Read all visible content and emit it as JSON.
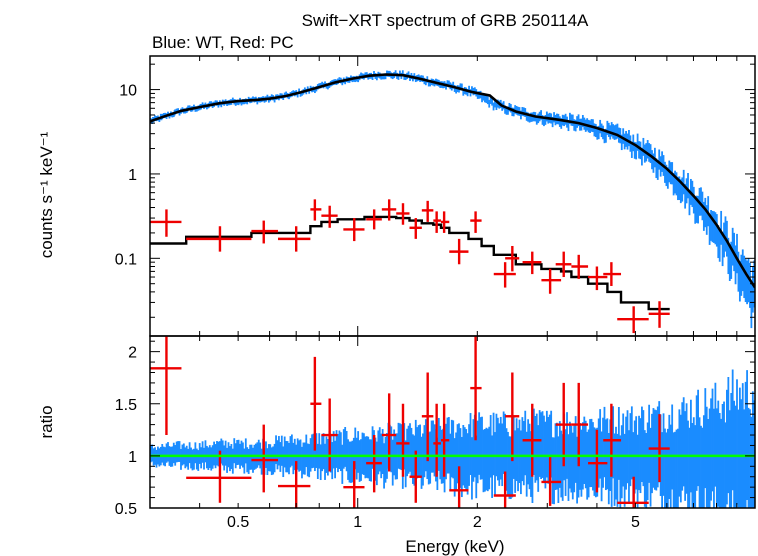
{
  "chart_data": {
    "type": "scatter",
    "title": "Swift−XRT spectrum of GRB 250114A",
    "subtitle": "Blue: WT, Red: PC",
    "xlabel": "Energy (keV)",
    "x_scale": "log",
    "xlim": [
      0.3,
      10
    ],
    "x_ticks": [
      0.5,
      1,
      2,
      5
    ],
    "x_tick_labels": [
      "0.5",
      "1",
      "2",
      "5"
    ],
    "colors": {
      "wt": "#1a8cff",
      "pc": "#ee0000",
      "model": "#000000",
      "unity": "#00ff00"
    },
    "panels": [
      {
        "name": "spectrum",
        "ylabel": "counts s⁻¹ keV⁻¹",
        "y_scale": "log",
        "ylim": [
          0.012,
          25
        ],
        "y_ticks": [
          0.1,
          1,
          10
        ],
        "y_tick_labels": [
          "0.1",
          "1",
          "10"
        ],
        "series": [
          {
            "name": "WT data",
            "kind": "dense_errorbars",
            "color": "#1a8cff",
            "x": [
              0.3,
              0.33,
              0.36,
              0.4,
              0.45,
              0.5,
              0.55,
              0.6,
              0.66,
              0.72,
              0.8,
              0.88,
              0.97,
              1.07,
              1.18,
              1.3,
              1.43,
              1.58,
              1.75,
              1.95,
              2.2,
              2.5,
              2.8,
              3.2,
              3.6,
              4.0,
              4.5,
              5.0,
              5.5,
              6.0,
              6.5,
              7.0,
              7.5,
              8.0,
              8.5,
              9.0,
              9.5,
              10.0
            ],
            "y": [
              4.2,
              4.9,
              5.6,
              6.2,
              6.9,
              7.3,
              7.5,
              7.8,
              8.4,
              9.3,
              10.7,
              12.2,
              13.5,
              14.6,
              15.1,
              14.8,
              13.5,
              12.0,
              10.7,
              9.3,
              6.8,
              5.5,
              4.8,
              4.4,
              4.0,
              3.5,
              2.9,
              2.2,
              1.6,
              1.15,
              0.8,
              0.55,
              0.38,
              0.25,
              0.16,
              0.1,
              0.065,
              0.045
            ]
          },
          {
            "name": "WT model",
            "kind": "line",
            "color": "#000000",
            "x": [
              0.3,
              0.33,
              0.36,
              0.4,
              0.45,
              0.5,
              0.55,
              0.6,
              0.66,
              0.72,
              0.8,
              0.88,
              0.97,
              1.07,
              1.18,
              1.3,
              1.43,
              1.58,
              1.75,
              1.95,
              2.15,
              2.3,
              2.5,
              2.8,
              3.2,
              3.6,
              4.0,
              4.5,
              5.0,
              5.5,
              6.0,
              6.5,
              7.0,
              7.5,
              8.0,
              8.5,
              9.0,
              9.5,
              10.0
            ],
            "y": [
              4.2,
              4.9,
              5.6,
              6.2,
              6.9,
              7.3,
              7.5,
              7.8,
              8.4,
              9.3,
              10.7,
              12.2,
              13.5,
              14.6,
              15.1,
              14.8,
              13.5,
              12.0,
              10.7,
              9.3,
              8.5,
              6.5,
              5.5,
              4.8,
              4.4,
              4.0,
              3.5,
              2.9,
              2.2,
              1.6,
              1.15,
              0.8,
              0.55,
              0.38,
              0.25,
              0.16,
              0.1,
              0.065,
              0.045
            ]
          },
          {
            "name": "PC data",
            "kind": "errorbars",
            "color": "#ee0000",
            "points": [
              {
                "x": 0.33,
                "xlo": 0.3,
                "xhi": 0.36,
                "y": 0.27,
                "ylo": 0.18,
                "yhi": 0.38
              },
              {
                "x": 0.45,
                "xlo": 0.37,
                "xhi": 0.54,
                "y": 0.17,
                "ylo": 0.12,
                "yhi": 0.24
              },
              {
                "x": 0.58,
                "xlo": 0.54,
                "xhi": 0.63,
                "y": 0.21,
                "ylo": 0.15,
                "yhi": 0.28
              },
              {
                "x": 0.7,
                "xlo": 0.63,
                "xhi": 0.76,
                "y": 0.17,
                "ylo": 0.12,
                "yhi": 0.24
              },
              {
                "x": 0.78,
                "xlo": 0.76,
                "xhi": 0.81,
                "y": 0.38,
                "ylo": 0.28,
                "yhi": 0.5
              },
              {
                "x": 0.85,
                "xlo": 0.81,
                "xhi": 0.89,
                "y": 0.32,
                "ylo": 0.23,
                "yhi": 0.42
              },
              {
                "x": 0.98,
                "xlo": 0.92,
                "xhi": 1.04,
                "y": 0.22,
                "ylo": 0.16,
                "yhi": 0.3
              },
              {
                "x": 1.1,
                "xlo": 1.05,
                "xhi": 1.15,
                "y": 0.29,
                "ylo": 0.22,
                "yhi": 0.38
              },
              {
                "x": 1.2,
                "xlo": 1.15,
                "xhi": 1.25,
                "y": 0.38,
                "ylo": 0.28,
                "yhi": 0.5
              },
              {
                "x": 1.3,
                "xlo": 1.25,
                "xhi": 1.35,
                "y": 0.34,
                "ylo": 0.25,
                "yhi": 0.45
              },
              {
                "x": 1.4,
                "xlo": 1.35,
                "xhi": 1.45,
                "y": 0.23,
                "ylo": 0.17,
                "yhi": 0.3
              },
              {
                "x": 1.5,
                "xlo": 1.45,
                "xhi": 1.55,
                "y": 0.37,
                "ylo": 0.27,
                "yhi": 0.48
              },
              {
                "x": 1.58,
                "xlo": 1.55,
                "xhi": 1.62,
                "y": 0.28,
                "ylo": 0.2,
                "yhi": 0.36
              },
              {
                "x": 1.65,
                "xlo": 1.62,
                "xhi": 1.7,
                "y": 0.27,
                "ylo": 0.2,
                "yhi": 0.36
              },
              {
                "x": 1.8,
                "xlo": 1.7,
                "xhi": 1.9,
                "y": 0.12,
                "ylo": 0.085,
                "yhi": 0.17
              },
              {
                "x": 1.98,
                "xlo": 1.92,
                "xhi": 2.05,
                "y": 0.28,
                "ylo": 0.2,
                "yhi": 0.36
              },
              {
                "x": 2.35,
                "xlo": 2.2,
                "xhi": 2.5,
                "y": 0.065,
                "ylo": 0.045,
                "yhi": 0.09
              },
              {
                "x": 2.45,
                "xlo": 2.35,
                "xhi": 2.55,
                "y": 0.1,
                "ylo": 0.07,
                "yhi": 0.14
              },
              {
                "x": 2.75,
                "xlo": 2.6,
                "xhi": 2.9,
                "y": 0.09,
                "ylo": 0.065,
                "yhi": 0.12
              },
              {
                "x": 3.05,
                "xlo": 2.9,
                "xhi": 3.25,
                "y": 0.055,
                "ylo": 0.038,
                "yhi": 0.075
              },
              {
                "x": 3.3,
                "xlo": 3.15,
                "xhi": 3.45,
                "y": 0.085,
                "ylo": 0.06,
                "yhi": 0.12
              },
              {
                "x": 3.6,
                "xlo": 3.45,
                "xhi": 3.8,
                "y": 0.08,
                "ylo": 0.057,
                "yhi": 0.11
              },
              {
                "x": 4.0,
                "xlo": 3.8,
                "xhi": 4.25,
                "y": 0.06,
                "ylo": 0.042,
                "yhi": 0.08
              },
              {
                "x": 4.35,
                "xlo": 4.15,
                "xhi": 4.6,
                "y": 0.065,
                "ylo": 0.047,
                "yhi": 0.09
              },
              {
                "x": 4.95,
                "xlo": 4.5,
                "xhi": 5.4,
                "y": 0.019,
                "ylo": 0.013,
                "yhi": 0.027
              },
              {
                "x": 5.75,
                "xlo": 5.4,
                "xhi": 6.1,
                "y": 0.022,
                "ylo": 0.015,
                "yhi": 0.031
              }
            ]
          },
          {
            "name": "PC model",
            "kind": "step",
            "color": "#000000",
            "edges": [
              0.3,
              0.37,
              0.54,
              0.63,
              0.76,
              0.81,
              0.89,
              1.04,
              1.15,
              1.25,
              1.35,
              1.45,
              1.55,
              1.62,
              1.7,
              1.9,
              2.05,
              2.2,
              2.5,
              2.9,
              3.25,
              3.45,
              3.8,
              4.25,
              4.6,
              5.4,
              6.1
            ],
            "y": [
              0.15,
              0.18,
              0.2,
              0.2,
              0.24,
              0.27,
              0.29,
              0.31,
              0.31,
              0.3,
              0.28,
              0.26,
              0.25,
              0.23,
              0.2,
              0.17,
              0.14,
              0.11,
              0.085,
              0.075,
              0.07,
              0.06,
              0.05,
              0.04,
              0.03,
              0.025
            ]
          }
        ]
      },
      {
        "name": "ratio",
        "ylabel": "ratio",
        "y_scale": "linear",
        "ylim": [
          0.5,
          2.15
        ],
        "y_ticks": [
          0.5,
          1,
          1.5,
          2
        ],
        "y_tick_labels": [
          "0.5",
          "1",
          "1.5",
          "2"
        ],
        "unity_line": 1,
        "series": [
          {
            "name": "WT ratio",
            "kind": "dense_errorbars",
            "color": "#1a8cff",
            "x": [
              0.3,
              0.35,
              0.4,
              0.45,
              0.5,
              0.55,
              0.6,
              0.66,
              0.72,
              0.8,
              0.88,
              0.97,
              1.07,
              1.18,
              1.3,
              1.43,
              1.58,
              1.75,
              1.95,
              2.2,
              2.5,
              2.8,
              3.2,
              3.6,
              4.0,
              4.5,
              5.0,
              5.5,
              6.0,
              6.5,
              7.0,
              7.5,
              8.0,
              8.5,
              9.0,
              9.5,
              10.0
            ],
            "y": [
              1.0,
              1.05,
              0.95,
              1.08,
              0.98,
              1.03,
              0.97,
              1.02,
              1.0,
              0.96,
              1.04,
              1.01,
              0.98,
              1.03,
              0.99,
              1.02,
              0.97,
              1.05,
              1.0,
              0.98,
              1.03,
              1.0,
              0.97,
              1.04,
              1.0,
              0.96,
              1.05,
              1.0,
              0.98,
              1.06,
              1.0,
              0.95,
              1.08,
              0.97,
              1.05,
              1.02,
              1.0
            ],
            "err": [
              0.08,
              0.1,
              0.1,
              0.12,
              0.12,
              0.12,
              0.13,
              0.15,
              0.15,
              0.17,
              0.18,
              0.2,
              0.2,
              0.22,
              0.22,
              0.25,
              0.25,
              0.28,
              0.3,
              0.3,
              0.3,
              0.32,
              0.32,
              0.32,
              0.33,
              0.35,
              0.35,
              0.38,
              0.4,
              0.42,
              0.45,
              0.48,
              0.5,
              0.55,
              0.6,
              0.62,
              0.65
            ]
          },
          {
            "name": "PC ratio",
            "kind": "errorbars",
            "color": "#ee0000",
            "points": [
              {
                "x": 0.33,
                "xlo": 0.3,
                "xhi": 0.36,
                "y": 1.84,
                "ylo": 1.2,
                "yhi": 2.15
              },
              {
                "x": 0.45,
                "xlo": 0.37,
                "xhi": 0.54,
                "y": 0.79,
                "ylo": 0.55,
                "yhi": 1.05
              },
              {
                "x": 0.58,
                "xlo": 0.54,
                "xhi": 0.63,
                "y": 0.96,
                "ylo": 0.65,
                "yhi": 1.3
              },
              {
                "x": 0.7,
                "xlo": 0.63,
                "xhi": 0.76,
                "y": 0.71,
                "ylo": 0.5,
                "yhi": 0.95
              },
              {
                "x": 0.78,
                "xlo": 0.76,
                "xhi": 0.81,
                "y": 1.5,
                "ylo": 1.05,
                "yhi": 1.95
              },
              {
                "x": 0.85,
                "xlo": 0.81,
                "xhi": 0.89,
                "y": 1.2,
                "ylo": 0.85,
                "yhi": 1.55
              },
              {
                "x": 0.98,
                "xlo": 0.92,
                "xhi": 1.04,
                "y": 0.7,
                "ylo": 0.5,
                "yhi": 0.95
              },
              {
                "x": 1.1,
                "xlo": 1.05,
                "xhi": 1.15,
                "y": 0.93,
                "ylo": 0.65,
                "yhi": 1.2
              },
              {
                "x": 1.2,
                "xlo": 1.15,
                "xhi": 1.25,
                "y": 1.2,
                "ylo": 0.85,
                "yhi": 1.6
              },
              {
                "x": 1.3,
                "xlo": 1.25,
                "xhi": 1.35,
                "y": 1.12,
                "ylo": 0.8,
                "yhi": 1.5
              },
              {
                "x": 1.4,
                "xlo": 1.35,
                "xhi": 1.45,
                "y": 0.8,
                "ylo": 0.55,
                "yhi": 1.05
              },
              {
                "x": 1.5,
                "xlo": 1.45,
                "xhi": 1.55,
                "y": 1.38,
                "ylo": 0.95,
                "yhi": 1.8
              },
              {
                "x": 1.58,
                "xlo": 1.55,
                "xhi": 1.62,
                "y": 1.12,
                "ylo": 0.8,
                "yhi": 1.5
              },
              {
                "x": 1.65,
                "xlo": 1.62,
                "xhi": 1.7,
                "y": 1.15,
                "ylo": 0.8,
                "yhi": 1.5
              },
              {
                "x": 1.8,
                "xlo": 1.7,
                "xhi": 1.9,
                "y": 0.67,
                "ylo": 0.5,
                "yhi": 0.9
              },
              {
                "x": 1.98,
                "xlo": 1.92,
                "xhi": 2.05,
                "y": 1.65,
                "ylo": 1.15,
                "yhi": 2.15
              },
              {
                "x": 2.35,
                "xlo": 2.2,
                "xhi": 2.5,
                "y": 0.62,
                "ylo": 0.5,
                "yhi": 0.85
              },
              {
                "x": 2.45,
                "xlo": 2.35,
                "xhi": 2.55,
                "y": 1.38,
                "ylo": 0.95,
                "yhi": 1.8
              },
              {
                "x": 2.75,
                "xlo": 2.6,
                "xhi": 2.9,
                "y": 1.15,
                "ylo": 0.8,
                "yhi": 1.5
              },
              {
                "x": 3.05,
                "xlo": 2.9,
                "xhi": 3.25,
                "y": 0.75,
                "ylo": 0.52,
                "yhi": 1.0
              },
              {
                "x": 3.3,
                "xlo": 3.15,
                "xhi": 3.45,
                "y": 1.3,
                "ylo": 0.9,
                "yhi": 1.7
              },
              {
                "x": 3.6,
                "xlo": 3.45,
                "xhi": 3.8,
                "y": 1.3,
                "ylo": 0.9,
                "yhi": 1.7
              },
              {
                "x": 4.0,
                "xlo": 3.8,
                "xhi": 4.25,
                "y": 0.93,
                "ylo": 0.65,
                "yhi": 1.25
              },
              {
                "x": 4.35,
                "xlo": 4.15,
                "xhi": 4.6,
                "y": 1.15,
                "ylo": 0.8,
                "yhi": 1.5
              },
              {
                "x": 4.95,
                "xlo": 4.5,
                "xhi": 5.4,
                "y": 0.55,
                "ylo": 0.5,
                "yhi": 0.8
              },
              {
                "x": 5.75,
                "xlo": 5.4,
                "xhi": 6.1,
                "y": 1.07,
                "ylo": 0.75,
                "yhi": 1.4
              }
            ]
          }
        ]
      }
    ]
  }
}
